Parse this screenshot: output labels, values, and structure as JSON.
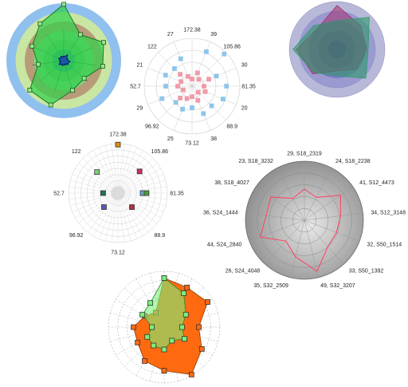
{
  "chart_data": [
    {
      "type": "radar",
      "title": "",
      "bands": [
        "#8fc0ee",
        "#c9e6a3",
        "#b89c7a",
        "#7fd07f",
        "#62c26b",
        "#2e9f8a"
      ],
      "series": [
        {
          "values": [
            100,
            55,
            78,
            70,
            48,
            55,
            82,
            80,
            46,
            62,
            78
          ],
          "fill": "#2fd14a",
          "stroke": "#1a7a22",
          "marker": "#9be58f"
        },
        {
          "values": [
            20,
            30,
            18,
            28,
            25,
            20,
            22,
            26,
            18,
            24,
            22
          ],
          "fill": "#1a4fb0",
          "stroke": "#0d2f7a",
          "marker": "#1a4fb0"
        }
      ]
    },
    {
      "type": "radar-scatter",
      "title": "",
      "tick_labels": [
        "172.38",
        "39",
        "105.86",
        "30",
        "81.35",
        "20",
        "88.9",
        "38",
        "73.12",
        "25",
        "96.92",
        "29",
        "52.7",
        "21",
        "122",
        "27"
      ],
      "series": [
        {
          "color": "#8ec6ea",
          "points": [
            [
              1,
              0.78
            ],
            [
              2,
              0.95
            ],
            [
              3,
              0.55
            ],
            [
              4,
              0.72
            ],
            [
              5,
              0.7
            ],
            [
              6,
              0.58
            ],
            [
              7,
              0.62
            ],
            [
              8,
              0.45
            ],
            [
              9,
              0.52
            ],
            [
              10,
              0.48
            ],
            [
              11,
              0.68
            ],
            [
              12,
              0.55
            ],
            [
              13,
              0.6
            ],
            [
              14,
              0.52
            ],
            [
              15,
              0.62
            ]
          ]
        },
        {
          "color": "#f09aa8",
          "points": [
            [
              0,
              0.15
            ],
            [
              1,
              0.3
            ],
            [
              2,
              0.2
            ],
            [
              3,
              0.38
            ],
            [
              4,
              0.25
            ],
            [
              5,
              0.3
            ],
            [
              6,
              0.18
            ],
            [
              7,
              0.32
            ],
            [
              8,
              0.22
            ],
            [
              9,
              0.28
            ],
            [
              10,
              0.35
            ],
            [
              11,
              0.2
            ],
            [
              12,
              0.3
            ],
            [
              13,
              0.25
            ],
            [
              14,
              0.35
            ],
            [
              15,
              0.22
            ]
          ]
        }
      ]
    },
    {
      "type": "radar-area",
      "title": "",
      "bands": [
        "#b8b8d8",
        "#9a9ad0",
        "#7a7ac8",
        "#5a5ab8",
        "#3b3ba8"
      ],
      "series": [
        {
          "fill": "#a23070",
          "opacity": 0.55,
          "values": [
            92,
            70,
            62,
            58,
            45,
            72,
            85,
            60
          ]
        },
        {
          "fill": "#2f9a6a",
          "opacity": 0.6,
          "values": [
            60,
            95,
            65,
            85,
            55,
            68,
            92,
            70
          ]
        }
      ]
    },
    {
      "type": "radar-scatter",
      "title": "",
      "tick_labels": [
        "172.38",
        "105.86",
        "81.35",
        "88.9",
        "73.12",
        "96.92",
        "52.7",
        "122"
      ],
      "points": [
        {
          "axis": 0,
          "r": 0.98,
          "color": "#e08a10"
        },
        {
          "axis": 1,
          "r": 0.62,
          "color": "#d0306a"
        },
        {
          "axis": 2,
          "r": 0.5,
          "color": "#6aa0d0"
        },
        {
          "axis": 2,
          "r": 0.58,
          "color": "#4aa03a"
        },
        {
          "axis": 3,
          "r": 0.4,
          "color": "#b03040"
        },
        {
          "axis": 5,
          "r": 0.4,
          "color": "#5a5ab0"
        },
        {
          "axis": 6,
          "r": 0.3,
          "color": "#207060"
        },
        {
          "axis": 7,
          "r": 0.6,
          "color": "#7ad07a"
        }
      ]
    },
    {
      "type": "radar",
      "title": "",
      "tick_labels": [
        "29, S18_2319",
        "24, S18_2238",
        "41, S12_4473",
        "34, S12_3148",
        "32, S50_1514",
        "33, S50_1392",
        "49, S32_3207",
        "35, S32_2509",
        "26, S24_4048",
        "44, S24_2840",
        "36, S24_1444",
        "38, S18_4027",
        "23, S18_3232"
      ],
      "series": [
        {
          "stroke": "#ff4060",
          "values": [
            29,
            24,
            41,
            34,
            32,
            33,
            49,
            35,
            26,
            44,
            36,
            38,
            23
          ]
        }
      ],
      "rmax": 55
    },
    {
      "type": "radar-area",
      "title": "",
      "series": [
        {
          "fill": "#ff6a10",
          "stroke": "#8a3a00",
          "marker": "#ff6a10",
          "values": [
            88,
            82,
            90,
            62,
            78,
            98,
            78,
            70,
            55,
            55,
            40,
            30
          ]
        },
        {
          "fill": "#7af07a",
          "stroke": "#2a8a2a",
          "marker": "#7af07a",
          "opacity": 0.6,
          "values": [
            88,
            70,
            45,
            32,
            42,
            28,
            40,
            38,
            35,
            22,
            45,
            50
          ]
        }
      ]
    }
  ]
}
